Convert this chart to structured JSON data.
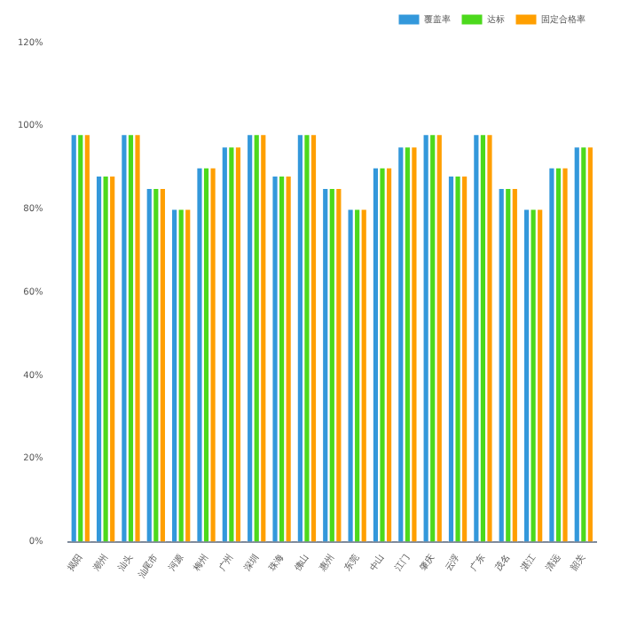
{
  "chart_data": {
    "type": "bar",
    "categories": [
      "揭阳",
      "潮州",
      "汕头",
      "汕尾市",
      "河源",
      "梅州",
      "广州",
      "深圳",
      "珠海",
      "佛山",
      "惠州",
      "东莞",
      "中山",
      "江门",
      "肇庆",
      "云浮",
      "广东",
      "茂名",
      "湛江",
      "清远",
      "韶关"
    ],
    "series": [
      {
        "name": "覆盖率",
        "color": "#3398db",
        "values": [
          98,
          88,
          98,
          85,
          80,
          90,
          95,
          98,
          88,
          98,
          85,
          80,
          90,
          95,
          98,
          88,
          98,
          85,
          80,
          90,
          95
        ]
      },
      {
        "name": "达标",
        "color": "#4cd91c",
        "values": [
          98,
          88,
          98,
          85,
          80,
          90,
          95,
          98,
          88,
          98,
          85,
          80,
          90,
          95,
          98,
          88,
          98,
          85,
          80,
          90,
          95
        ]
      },
      {
        "name": "固定合格率",
        "color": "#ff9f00",
        "values": [
          98,
          88,
          98,
          85,
          80,
          90,
          95,
          98,
          88,
          98,
          85,
          80,
          90,
          95,
          98,
          88,
          98,
          85,
          80,
          90,
          95
        ]
      }
    ],
    "ylim": [
      0,
      120
    ],
    "yticks": [
      {
        "value": 0,
        "label": "0%"
      },
      {
        "value": 20,
        "label": "20%"
      },
      {
        "value": 40,
        "label": "40%"
      },
      {
        "value": 60,
        "label": "60%"
      },
      {
        "value": 80,
        "label": "80%"
      },
      {
        "value": 100,
        "label": "100%"
      },
      {
        "value": 120,
        "label": "120%"
      }
    ],
    "grid": false,
    "legend": "top right"
  }
}
